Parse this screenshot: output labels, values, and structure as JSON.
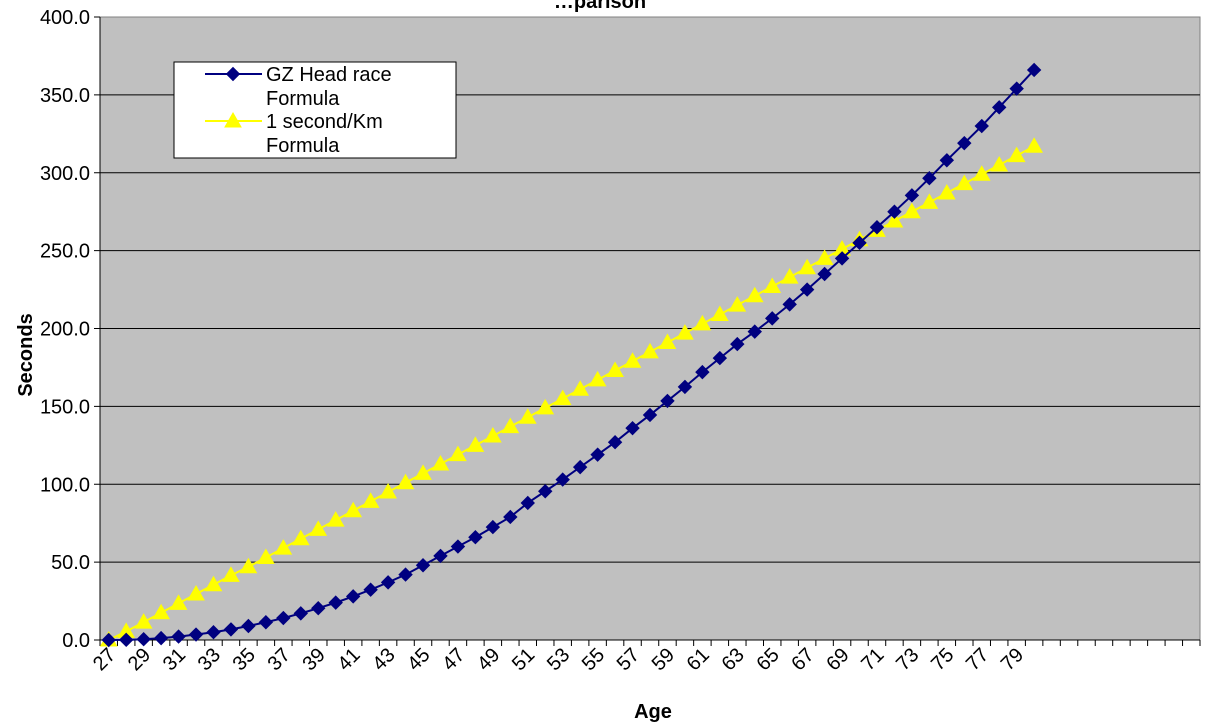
{
  "chart_data": {
    "type": "line",
    "title": "…parison",
    "xlabel": "Age",
    "ylabel": "Seconds",
    "ylim": [
      0,
      400
    ],
    "y_ticks": [
      "0.0",
      "50.0",
      "100.0",
      "150.0",
      "200.0",
      "250.0",
      "300.0",
      "350.0",
      "400.0"
    ],
    "x_min": 27,
    "x_max": 80,
    "x_axis_max": 89,
    "x_tick_labels": [
      "27",
      "29",
      "31",
      "33",
      "35",
      "37",
      "39",
      "41",
      "43",
      "45",
      "47",
      "49",
      "51",
      "53",
      "55",
      "57",
      "59",
      "61",
      "63",
      "65",
      "67",
      "69",
      "71",
      "73",
      "75",
      "77",
      "79"
    ],
    "grid": "horizontal",
    "plot_background": "#c0c0c0",
    "legend_position": "top-left",
    "series": [
      {
        "name": "GZ Head race Formula",
        "legend_lines": [
          "GZ Head race",
          "Formula"
        ],
        "color": "#000080",
        "marker": "diamond",
        "x": [
          27,
          28,
          29,
          30,
          31,
          32,
          33,
          34,
          35,
          36,
          37,
          38,
          39,
          40,
          41,
          42,
          43,
          44,
          45,
          46,
          47,
          48,
          49,
          50,
          51,
          52,
          53,
          54,
          55,
          56,
          57,
          58,
          59,
          60,
          61,
          62,
          63,
          64,
          65,
          66,
          67,
          68,
          69,
          70,
          71,
          72,
          73,
          74,
          75,
          76,
          77,
          78,
          79,
          80
        ],
        "values": [
          0.0,
          0.1,
          0.5,
          1.2,
          2.2,
          3.5,
          5.0,
          6.8,
          9.0,
          11.4,
          14.1,
          17.1,
          20.4,
          24.0,
          28.0,
          32.3,
          37.0,
          42.0,
          48.0,
          54.0,
          60.0,
          66.0,
          72.5,
          79.0,
          88.0,
          95.5,
          103.0,
          111.0,
          119.0,
          127.0,
          136.0,
          144.5,
          153.5,
          162.5,
          172.0,
          181.0,
          190.0,
          198.0,
          206.5,
          215.5,
          225.0,
          235.0,
          245.0,
          255.0,
          265.0,
          275.0,
          285.5,
          296.5,
          308.0,
          319.0,
          330.0,
          342.0,
          354.0,
          366.0
        ]
      },
      {
        "name": "1 second/Km Formula",
        "legend_lines": [
          "1 second/Km",
          "Formula"
        ],
        "color": "#ffff00",
        "marker": "triangle",
        "x": [
          27,
          28,
          29,
          30,
          31,
          32,
          33,
          34,
          35,
          36,
          37,
          38,
          39,
          40,
          41,
          42,
          43,
          44,
          45,
          46,
          47,
          48,
          49,
          50,
          51,
          52,
          53,
          54,
          55,
          56,
          57,
          58,
          59,
          60,
          61,
          62,
          63,
          64,
          65,
          66,
          67,
          68,
          69,
          70,
          71,
          72,
          73,
          74,
          75,
          76,
          77,
          78,
          79,
          80
        ],
        "values": [
          0.0,
          5.5,
          11.5,
          17.5,
          23.5,
          29.5,
          35.5,
          41.5,
          47.0,
          53.0,
          59.0,
          65.0,
          71.0,
          77.0,
          83.0,
          89.0,
          95.0,
          101.0,
          107.0,
          113.0,
          119.0,
          125.0,
          131.0,
          137.0,
          143.0,
          149.0,
          155.0,
          161.0,
          167.0,
          173.0,
          179.0,
          185.0,
          191.0,
          197.0,
          203.0,
          209.0,
          215.0,
          221.0,
          227.0,
          233.0,
          239.0,
          245.0,
          251.0,
          257.0,
          263.0,
          269.0,
          275.0,
          281.0,
          287.0,
          293.0,
          299.0,
          305.0,
          311.0,
          317.0
        ]
      }
    ]
  }
}
